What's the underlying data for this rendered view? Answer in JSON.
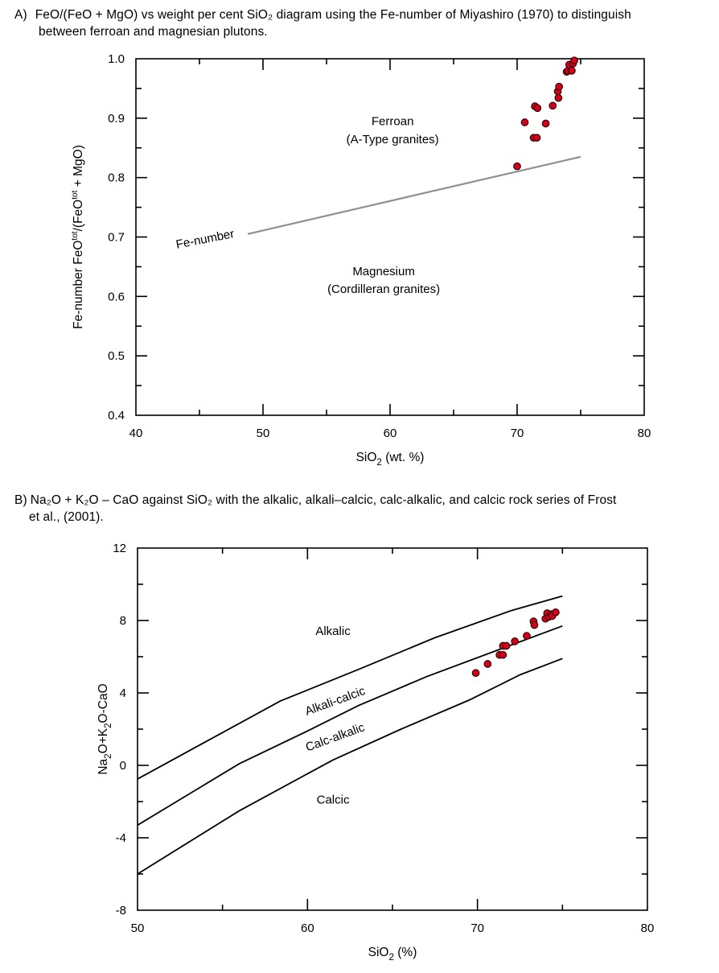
{
  "captions": {
    "a": {
      "label": "A)",
      "line1": "FeO/(FeO + MgO) vs weight per cent SiO₂ diagram using the Fe-number of Miyashiro (1970) to distinguish",
      "line2": "between ferroan and magnesian plutons."
    },
    "b": {
      "label": "B)",
      "line1": "Na₂O + K₂O – CaO against SiO₂ with the alkalic, alkali–calcic, calc-alkalic, and calcic rock series of Frost",
      "line2": "et al., (2001)."
    }
  },
  "chart_data": [
    {
      "type": "scatter",
      "xlim": [
        40,
        80
      ],
      "ylim": [
        0.4,
        1.0
      ],
      "xticks": [
        "40",
        "50",
        "60",
        "70",
        "80"
      ],
      "yticks": [
        "0.4",
        "0.5",
        "0.6",
        "0.7",
        "0.8",
        "0.9",
        "1.0"
      ],
      "xlabel": "SiO₂  (wt. %)",
      "ylabel": "Fe-number FeOᵗᵒᵗ/(FeOᵗᵒᵗ + MgO)",
      "grid": false,
      "marker_color": "#d0021b",
      "marker_edge": "#2a0000",
      "line_color": "#909090",
      "lines": [
        {
          "name": "Fe-number",
          "x": [
            48.8,
            75.0
          ],
          "y": [
            0.705,
            0.835
          ]
        }
      ],
      "labels": [
        {
          "text": "Fe-number",
          "x": 45.5,
          "y": 0.69,
          "rotate": -11
        },
        {
          "text": "Ferroan",
          "x": 60.2,
          "y": 0.888
        },
        {
          "text": "(A-Type granites)",
          "x": 60.2,
          "y": 0.858
        },
        {
          "text": "Magnesium",
          "x": 59.5,
          "y": 0.636
        },
        {
          "text": "(Cordilleran granites)",
          "x": 59.5,
          "y": 0.606
        }
      ],
      "points": [
        {
          "x": 70.0,
          "y": 0.819
        },
        {
          "x": 70.6,
          "y": 0.893
        },
        {
          "x": 71.3,
          "y": 0.867
        },
        {
          "x": 71.55,
          "y": 0.867
        },
        {
          "x": 71.4,
          "y": 0.92
        },
        {
          "x": 71.6,
          "y": 0.917
        },
        {
          "x": 72.25,
          "y": 0.891
        },
        {
          "x": 72.8,
          "y": 0.921
        },
        {
          "x": 73.2,
          "y": 0.945
        },
        {
          "x": 73.25,
          "y": 0.934
        },
        {
          "x": 73.3,
          "y": 0.953
        },
        {
          "x": 73.9,
          "y": 0.978
        },
        {
          "x": 74.0,
          "y": 0.98
        },
        {
          "x": 74.1,
          "y": 0.99
        },
        {
          "x": 74.3,
          "y": 0.98
        },
        {
          "x": 74.4,
          "y": 0.992
        },
        {
          "x": 74.5,
          "y": 0.997
        }
      ]
    },
    {
      "type": "scatter",
      "xlim": [
        50,
        80
      ],
      "ylim": [
        -8,
        12
      ],
      "xticks": [
        "50",
        "60",
        "70",
        "80"
      ],
      "yticks": [
        "-8",
        "-4",
        "0",
        "4",
        "8",
        "12"
      ],
      "xlabel": "SiO₂  (%)",
      "ylabel": "Na₂O+K₂O-CaO",
      "grid": false,
      "marker_color": "#d0021b",
      "marker_edge": "#2a0000",
      "line_color": "#000000",
      "lines": [
        {
          "name": "Alkalic / Alkali-calcic",
          "x": [
            50.0,
            54.0,
            58.4,
            63.0,
            67.5,
            72.0,
            75.0
          ],
          "y": [
            -0.75,
            1.3,
            3.55,
            5.3,
            7.05,
            8.55,
            9.35
          ]
        },
        {
          "name": "Alkali-calcic / Calc-alkalic",
          "x": [
            50.0,
            56.0,
            60.0,
            63.0,
            67.0,
            72.0,
            75.0
          ],
          "y": [
            -3.3,
            0.1,
            1.9,
            3.3,
            4.9,
            6.65,
            7.7
          ]
        },
        {
          "name": "Calc-alkalic / Calcic",
          "x": [
            50.0,
            56.0,
            61.5,
            65.5,
            69.5,
            72.5,
            75.0
          ],
          "y": [
            -6.0,
            -2.5,
            0.3,
            2.0,
            3.6,
            5.0,
            5.9
          ]
        }
      ],
      "labels": [
        {
          "text": "Alkalic",
          "x": 61.5,
          "y": 7.2
        },
        {
          "text": "Alkali-calcic",
          "x": 61.7,
          "y": 3.35,
          "rotate": -20
        },
        {
          "text": "Calc-alkalic",
          "x": 61.7,
          "y": 1.35,
          "rotate": -20
        },
        {
          "text": "Calcic",
          "x": 61.5,
          "y": -2.1
        }
      ],
      "points": [
        {
          "x": 69.9,
          "y": 5.1
        },
        {
          "x": 70.6,
          "y": 5.6
        },
        {
          "x": 71.3,
          "y": 6.1
        },
        {
          "x": 71.5,
          "y": 6.1
        },
        {
          "x": 71.5,
          "y": 6.6
        },
        {
          "x": 71.7,
          "y": 6.6
        },
        {
          "x": 72.2,
          "y": 6.85
        },
        {
          "x": 72.9,
          "y": 7.15
        },
        {
          "x": 73.3,
          "y": 7.95
        },
        {
          "x": 73.35,
          "y": 7.75
        },
        {
          "x": 74.0,
          "y": 8.1
        },
        {
          "x": 74.1,
          "y": 8.4
        },
        {
          "x": 74.2,
          "y": 8.2
        },
        {
          "x": 74.35,
          "y": 8.35
        },
        {
          "x": 74.4,
          "y": 8.25
        },
        {
          "x": 74.6,
          "y": 8.45
        }
      ]
    }
  ]
}
